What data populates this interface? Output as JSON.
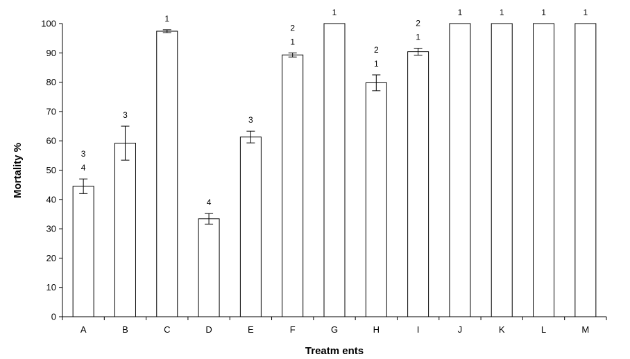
{
  "chart_data": {
    "type": "bar",
    "xlabel": "Treatm ents",
    "ylabel": "Mortality %",
    "ylim": [
      0,
      100
    ],
    "yticks": [
      0,
      10,
      20,
      30,
      40,
      50,
      60,
      70,
      80,
      90,
      100
    ],
    "categories": [
      "A",
      "B",
      "C",
      "D",
      "E",
      "F",
      "G",
      "H",
      "I",
      "J",
      "K",
      "L",
      "M"
    ],
    "values": [
      44.5,
      59.2,
      97.4,
      33.4,
      61.3,
      89.3,
      100,
      79.8,
      90.4,
      100,
      100,
      100,
      100
    ],
    "error": [
      2.5,
      5.8,
      0.5,
      1.8,
      2.0,
      0.7,
      0,
      2.7,
      1.2,
      0,
      0,
      0,
      0
    ],
    "group_labels": [
      [
        "4",
        "3"
      ],
      [
        "3"
      ],
      [
        "1"
      ],
      [
        "4"
      ],
      [
        "3"
      ],
      [
        "1",
        "2"
      ],
      [
        "1"
      ],
      [
        "1",
        "2"
      ],
      [
        "1",
        "2"
      ],
      [
        "1"
      ],
      [
        "1"
      ],
      [
        "1"
      ],
      [
        "1"
      ]
    ],
    "grid": false,
    "bar_fill": "#ffffff",
    "bar_stroke": "#000000"
  }
}
